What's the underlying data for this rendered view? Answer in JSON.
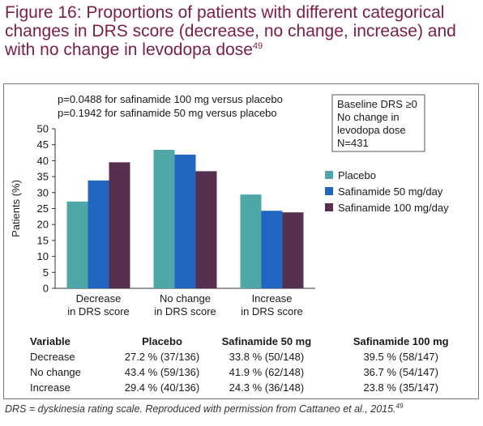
{
  "figure": {
    "title": "Figure 16: Proportions of patients with different categorical changes in DRS score (decrease, no change, increase) and with no change in levodopa dose",
    "title_ref": "49",
    "caption": "DRS = dyskinesia rating scale. Reproduced with permission from Cattaneo et al., 2015.",
    "caption_ref": "49"
  },
  "chart_data": {
    "type": "bar",
    "categories": [
      "Decrease\nin DRS score",
      "No change\nin DRS score",
      "Increase\nin DRS score"
    ],
    "series": [
      {
        "name": "Placebo",
        "color": "#4ea6a6",
        "values": [
          27.2,
          43.4,
          29.4
        ]
      },
      {
        "name": "Safinamide 50 mg/day",
        "color": "#2166c0",
        "values": [
          33.8,
          41.9,
          24.3
        ]
      },
      {
        "name": "Safinamide 100 mg/day",
        "color": "#58304f",
        "values": [
          39.5,
          36.7,
          23.8
        ]
      }
    ],
    "ylabel": "Patients (%)",
    "ylim": [
      0,
      50
    ],
    "yticks": [
      0,
      5,
      10,
      15,
      20,
      25,
      30,
      35,
      40,
      45,
      50
    ],
    "legend_position": "right",
    "annotations": [
      "p=0.0488 for safinamide 100 mg versus placebo",
      "p=0.1942 for safinamide 50 mg versus placebo"
    ],
    "info_box": [
      "Baseline DRS ≥0",
      "No change in",
      "levodopa dose",
      "N=431"
    ]
  },
  "table": {
    "headers": [
      "Variable",
      "Placebo",
      "Safinamide 50 mg",
      "Safinamide 100 mg"
    ],
    "rows": [
      [
        "Decrease",
        "27.2 % (37/136)",
        "33.8 % (50/148)",
        "39.5 % (58/147)"
      ],
      [
        "No change",
        "43.4 % (59/136)",
        "41.9 % (62/148)",
        "36.7 % (54/147)"
      ],
      [
        "Increase",
        "29.4 % (40/136)",
        "24.3 % (36/148)",
        "23.8 % (35/147)"
      ]
    ]
  }
}
